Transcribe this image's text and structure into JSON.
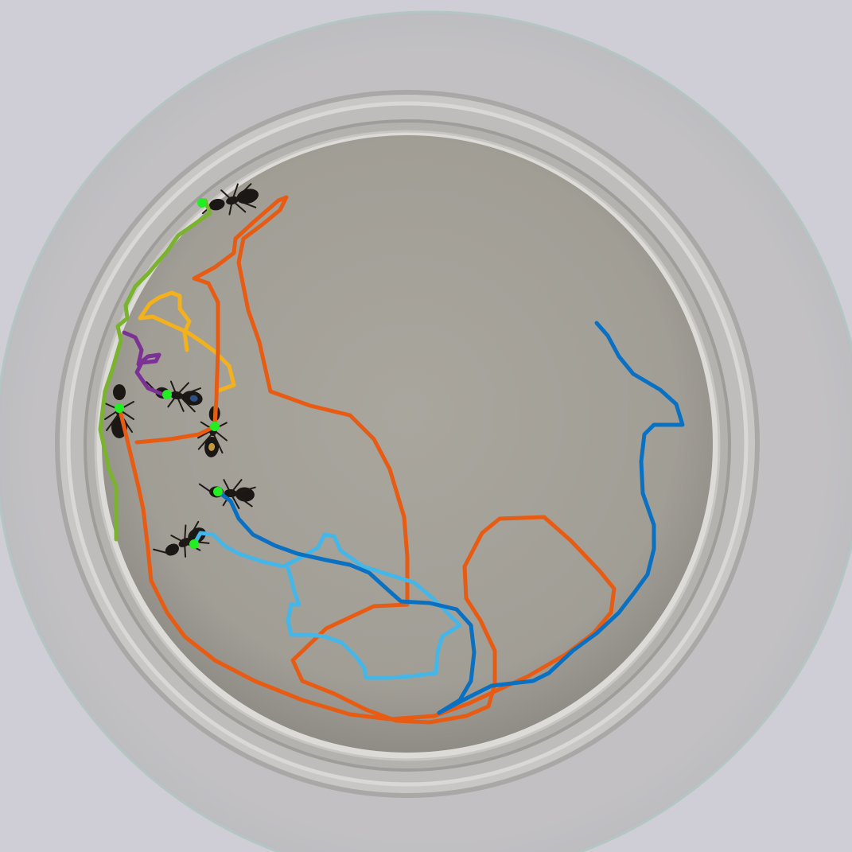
{
  "image": {
    "description_free": true,
    "subject": "ant-tracking-overlay"
  },
  "colors": {
    "background": "#cfcdd6",
    "outer_dish": "#c4c2c3",
    "dish_rim": "#b8b6b4",
    "dish_floor": "#a7a49c",
    "track_green": "#7ab32e",
    "track_purple": "#7b3294",
    "track_yellow": "#f2b11d",
    "track_orange": "#e85b12",
    "track_lightblue": "#45b6e8",
    "track_blue": "#0a71c2",
    "head_marker": "#22ee22"
  },
  "tracks": [
    {
      "id": "green",
      "color_key": "track_green"
    },
    {
      "id": "purple",
      "color_key": "track_purple"
    },
    {
      "id": "yellow",
      "color_key": "track_yellow"
    },
    {
      "id": "orange",
      "color_key": "track_orange"
    },
    {
      "id": "lightblue",
      "color_key": "track_lightblue"
    },
    {
      "id": "blue",
      "color_key": "track_blue"
    }
  ],
  "ant_count": 7
}
